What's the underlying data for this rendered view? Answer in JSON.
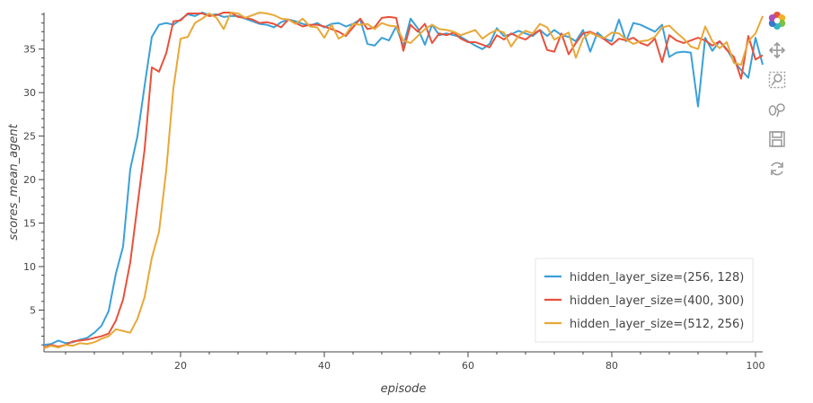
{
  "chart_data": {
    "type": "line",
    "title": "",
    "xlabel": "episode",
    "ylabel": "scores_mean_agent",
    "xlim": [
      1,
      101
    ],
    "ylim": [
      0.2,
      39.2
    ],
    "xticks": [
      20,
      40,
      60,
      80,
      100
    ],
    "yticks": [
      5,
      10,
      15,
      20,
      25,
      30,
      35
    ],
    "grid": false,
    "legend_position": "bottom-right",
    "x": [
      1,
      2,
      3,
      4,
      5,
      6,
      7,
      8,
      9,
      10,
      11,
      12,
      13,
      14,
      15,
      16,
      17,
      18,
      19,
      20,
      21,
      22,
      23,
      24,
      25,
      26,
      27,
      28,
      29,
      30,
      31,
      32,
      33,
      34,
      35,
      36,
      37,
      38,
      39,
      40,
      41,
      42,
      43,
      44,
      45,
      46,
      47,
      48,
      49,
      50,
      51,
      52,
      53,
      54,
      55,
      56,
      57,
      58,
      59,
      60,
      61,
      62,
      63,
      64,
      65,
      66,
      67,
      68,
      69,
      70,
      71,
      72,
      73,
      74,
      75,
      76,
      77,
      78,
      79,
      80,
      81,
      82,
      83,
      84,
      85,
      86,
      87,
      88,
      89,
      90,
      91,
      92,
      93,
      94,
      95,
      96,
      97,
      98,
      99,
      100,
      101
    ],
    "series": [
      {
        "name": "hidden_layer_size=(256, 128)",
        "color": "#3aa0d8",
        "values": [
          1.0,
          1.1,
          1.5,
          1.2,
          1.3,
          1.6,
          1.8,
          2.4,
          3.2,
          4.9,
          9.2,
          12.3,
          21.2,
          25.0,
          30.8,
          36.4,
          37.8,
          38.0,
          37.8,
          38.4,
          39.0,
          38.8,
          39.2,
          38.9,
          39.0,
          38.7,
          38.8,
          38.8,
          38.5,
          38.2,
          37.9,
          37.8,
          37.5,
          38.1,
          38.4,
          38.2,
          37.9,
          37.7,
          38.0,
          37.5,
          37.9,
          38.0,
          37.6,
          37.9,
          38.4,
          35.6,
          35.4,
          36.3,
          36.0,
          37.6,
          35.3,
          38.5,
          37.4,
          35.5,
          37.8,
          36.6,
          36.8,
          36.6,
          36.4,
          35.9,
          35.4,
          35.0,
          35.6,
          37.4,
          36.5,
          36.7,
          37.1,
          36.8,
          36.5,
          37.2,
          36.5,
          37.2,
          36.6,
          36.4,
          35.9,
          37.2,
          34.7,
          36.9,
          36.2,
          35.9,
          38.4,
          35.9,
          38.0,
          37.8,
          37.4,
          37.0,
          37.8,
          34.1,
          34.6,
          34.7,
          34.6,
          28.4,
          36.3,
          34.8,
          35.9,
          35.0,
          33.6,
          32.6,
          31.7,
          36.3,
          33.2
        ]
      },
      {
        "name": "hidden_layer_size=(400, 300)",
        "color": "#e8513b",
        "values": [
          0.7,
          1.0,
          0.8,
          1.0,
          1.4,
          1.5,
          1.6,
          1.8,
          2.0,
          2.3,
          3.8,
          6.2,
          10.5,
          17.0,
          23.5,
          32.9,
          32.4,
          34.5,
          38.2,
          38.3,
          39.1,
          39.1,
          39.1,
          38.8,
          38.9,
          39.2,
          39.2,
          38.7,
          38.6,
          38.4,
          38.0,
          38.1,
          37.9,
          37.5,
          38.4,
          38.0,
          37.6,
          37.8,
          37.8,
          37.6,
          37.3,
          37.0,
          36.5,
          37.5,
          38.5,
          37.3,
          37.5,
          38.6,
          38.7,
          38.6,
          34.8,
          37.8,
          37.0,
          37.9,
          35.7,
          36.8,
          36.6,
          36.9,
          36.2,
          35.8,
          35.8,
          35.5,
          35.2,
          36.6,
          36.1,
          36.8,
          36.4,
          36.1,
          36.7,
          37.2,
          34.9,
          34.7,
          36.8,
          34.4,
          35.7,
          36.8,
          37.0,
          36.6,
          36.1,
          35.5,
          36.2,
          36.0,
          36.3,
          35.7,
          35.4,
          36.2,
          33.5,
          36.6,
          36.0,
          35.7,
          36.0,
          36.3,
          36.0,
          35.4,
          35.9,
          34.9,
          34.1,
          31.6,
          36.5,
          33.8,
          34.3
        ]
      },
      {
        "name": "hidden_layer_size=(512, 256)",
        "color": "#e8a838",
        "values": [
          0.6,
          0.9,
          0.7,
          1.0,
          0.9,
          1.2,
          1.1,
          1.3,
          1.7,
          2.0,
          2.8,
          2.6,
          2.4,
          4.0,
          6.5,
          11.0,
          14.0,
          21.0,
          30.5,
          36.2,
          36.4,
          38.0,
          38.5,
          39.1,
          38.6,
          37.3,
          39.2,
          39.1,
          38.6,
          38.9,
          39.2,
          39.1,
          38.9,
          38.5,
          38.4,
          37.9,
          38.5,
          37.6,
          37.5,
          36.3,
          37.8,
          36.2,
          36.7,
          37.9,
          37.8,
          37.9,
          37.3,
          38.0,
          37.7,
          37.6,
          36.0,
          35.7,
          36.5,
          37.3,
          37.8,
          37.3,
          37.2,
          37.0,
          36.6,
          36.9,
          37.2,
          36.2,
          36.8,
          37.2,
          36.9,
          35.3,
          36.5,
          37.1,
          36.8,
          37.9,
          37.5,
          36.1,
          36.5,
          36.9,
          34.0,
          36.2,
          36.9,
          36.5,
          36.3,
          36.9,
          36.8,
          36.1,
          35.6,
          35.9,
          36.0,
          36.4,
          37.5,
          37.7,
          36.9,
          36.2,
          35.3,
          35.0,
          37.6,
          35.9,
          35.1,
          35.8,
          33.4,
          33.2,
          35.9,
          36.8,
          38.8
        ]
      }
    ]
  },
  "toolbar": {
    "tools": [
      "bokeh-logo-icon",
      "pan-icon",
      "box-zoom-icon",
      "wheel-zoom-icon",
      "save-icon",
      "reset-icon"
    ]
  }
}
